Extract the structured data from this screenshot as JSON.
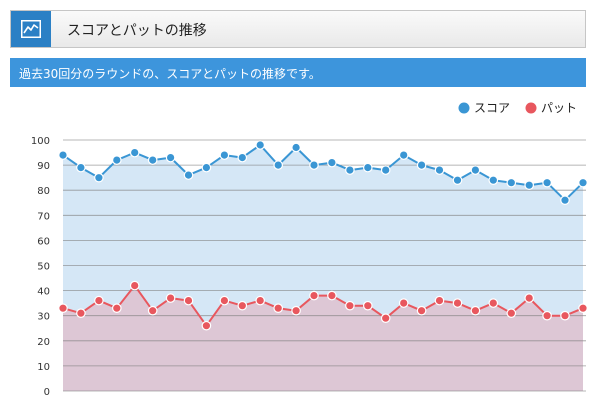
{
  "header": {
    "icon": "line-chart-icon",
    "title": "スコアとパットの推移",
    "accent_color": "#2b80c5"
  },
  "description": {
    "text": "過去30回分のラウンドの、スコアとパットの推移です。",
    "background_color": "#3d95dc"
  },
  "chart_data": {
    "type": "area",
    "title": "",
    "xlabel": "",
    "ylabel": "",
    "ylim": [
      0,
      100
    ],
    "yticks": [
      0,
      10,
      20,
      30,
      40,
      50,
      60,
      70,
      80,
      90,
      100
    ],
    "grid": true,
    "legend": {
      "position": "top-right",
      "entries": [
        "スコア",
        "パット"
      ]
    },
    "series": [
      {
        "name": "スコア",
        "color": "#3a96d4",
        "fill": "#d5e7f6",
        "values": [
          94,
          89,
          85,
          92,
          95,
          92,
          93,
          86,
          89,
          94,
          93,
          98,
          90,
          97,
          90,
          91,
          88,
          89,
          88,
          94,
          90,
          88,
          84,
          88,
          84,
          83,
          82,
          83,
          76,
          83
        ]
      },
      {
        "name": "パット",
        "color": "#e8575e",
        "fill": "#ddc7d5",
        "values": [
          33,
          31,
          36,
          33,
          42,
          32,
          37,
          36,
          26,
          36,
          34,
          36,
          33,
          32,
          38,
          38,
          34,
          34,
          29,
          35,
          32,
          36,
          35,
          32,
          35,
          31,
          37,
          30,
          30,
          33
        ]
      }
    ]
  }
}
